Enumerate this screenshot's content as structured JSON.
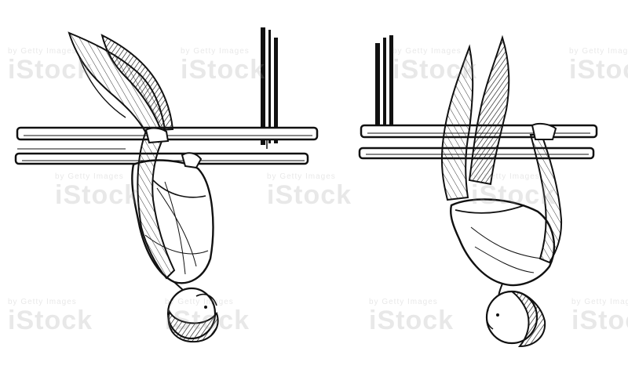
{
  "image": {
    "subject": "engraving",
    "colors": {
      "ink": "#111111",
      "paper": "#ffffff"
    },
    "watermark": {
      "brand": "iStock",
      "credit": "by Getty Images",
      "color": "#969696"
    }
  }
}
